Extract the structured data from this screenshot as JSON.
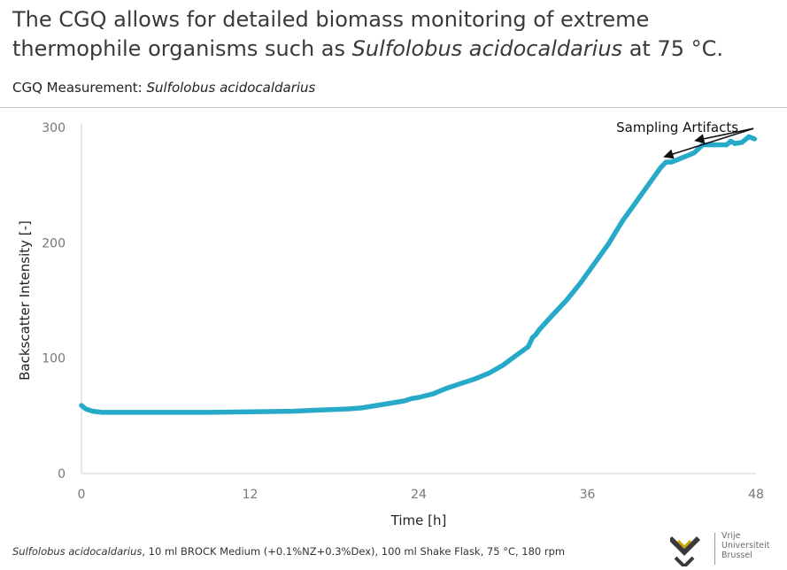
{
  "headline": {
    "part1": "The CGQ allows for detailed biomass monitoring of extreme thermophile organisms such as ",
    "species": "Sulfolobus acidocaldarius",
    "part2": " at 75 °C."
  },
  "subtitle": {
    "prefix": "CGQ Measurement: ",
    "species": "Sulfolobus acidocaldarius"
  },
  "footnote": {
    "species": "Sulfolobus acidocaldarius",
    "details": ", 10 ml BROCK Medium (+0.1%NZ+0.3%Dex), 100 ml Shake Flask, 75 °C, 180 rpm"
  },
  "logo": {
    "line1": "Vrije",
    "line2": "Universiteit",
    "line3": "Brussel",
    "mark_color": "#3a3a3a",
    "accent_color": "#c8a800"
  },
  "chart_data": {
    "type": "line",
    "xlabel": "Time [h]",
    "ylabel": "Backscatter Intensity [-]",
    "xlim": [
      0,
      48
    ],
    "ylim": [
      0,
      300
    ],
    "xticks": [
      0,
      12,
      24,
      36,
      48
    ],
    "xtick_labels": [
      "0",
      "12",
      "24",
      "36",
      "48"
    ],
    "yticks": [
      0,
      100,
      200,
      300
    ],
    "ytick_labels": [
      "0",
      "100",
      "200",
      "300"
    ],
    "grid": false,
    "line_color": "#27aac9",
    "series": [
      {
        "x": [
          0,
          0.3,
          0.8,
          1.5,
          3,
          6,
          9,
          12,
          15,
          17,
          19,
          20,
          21,
          22,
          23,
          23.5,
          24,
          25,
          26,
          27,
          28,
          29,
          30,
          31,
          31.8,
          32.1,
          32.3,
          32.6,
          33.5,
          34.5,
          35.5,
          36.5,
          37.5,
          38.5,
          39.5,
          40.5,
          41.2,
          41.6,
          42,
          42.8,
          43.6,
          44.2,
          45,
          45.9,
          46.2,
          46.5,
          47,
          47.5,
          47.9
        ],
        "y": [
          59,
          56,
          54,
          53,
          53,
          53,
          53,
          53.5,
          54,
          55,
          56,
          57,
          59,
          61,
          63,
          65,
          66,
          69,
          74,
          78,
          82,
          87,
          94,
          103,
          110,
          118,
          120,
          125,
          137,
          150,
          165,
          182,
          199,
          219,
          236,
          253,
          265,
          270,
          270,
          274,
          278,
          285,
          285,
          285,
          288,
          286,
          287,
          292,
          290
        ]
      }
    ],
    "annotations": [
      {
        "text": "Sampling Artifacts",
        "targets": [
          [
            41.6,
            270
          ],
          [
            43.8,
            284
          ]
        ]
      }
    ]
  }
}
